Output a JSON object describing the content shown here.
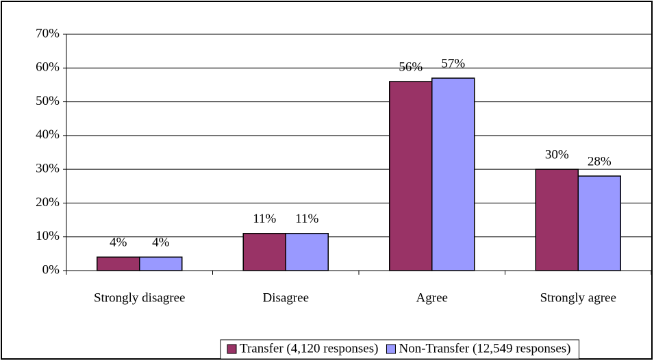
{
  "chart_data": {
    "type": "bar",
    "categories": [
      "Strongly disagree",
      "Disagree",
      "Agree",
      "Strongly agree"
    ],
    "series": [
      {
        "name": "Transfer (4,120 responses)",
        "color": "#993366",
        "values": [
          4,
          11,
          56,
          30
        ],
        "value_labels": [
          "4%",
          "11%",
          "56%",
          "30%"
        ]
      },
      {
        "name": "Non-Transfer (12,549 responses)",
        "color": "#9999ff",
        "values": [
          4,
          11,
          57,
          28
        ],
        "value_labels": [
          "4%",
          "11%",
          "57%",
          "28%"
        ]
      }
    ],
    "ylim": [
      0,
      70
    ],
    "yticks": [
      {
        "value": 0,
        "label": "0%"
      },
      {
        "value": 10,
        "label": "10%"
      },
      {
        "value": 20,
        "label": "20%"
      },
      {
        "value": 30,
        "label": "30%"
      },
      {
        "value": 40,
        "label": "40%"
      },
      {
        "value": 50,
        "label": "50%"
      },
      {
        "value": 60,
        "label": "60%"
      },
      {
        "value": 70,
        "label": "70%"
      }
    ],
    "grid": true,
    "legend": "bottom"
  }
}
